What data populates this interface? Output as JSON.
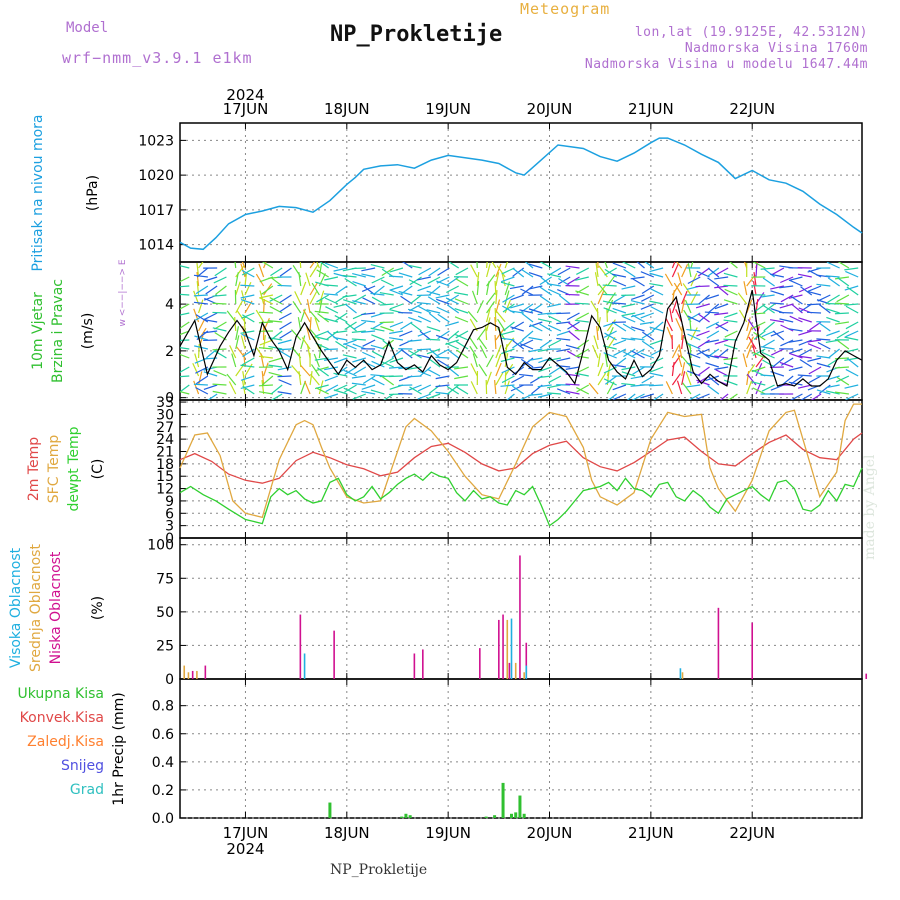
{
  "header": {
    "model_label": "Model",
    "model_name": "wrf−nmm_v3.9.1 e1km",
    "title": "NP_Prokletije",
    "meteogram_label": "Meteogram",
    "info_lonlat": "lon,lat (19.9125E, 42.5312N)",
    "info_altitude": "Nadmorska Visina 1760m",
    "info_model_altitude": "Nadmorska Visina u modelu 1647.44m"
  },
  "footer": {
    "station": "NP_Prokletije",
    "watermark": "made by Angel"
  },
  "colors": {
    "pressure": "#1ca0e0",
    "wind_speed": "#000000",
    "t2m": "#e04848",
    "tsfc": "#e0a840",
    "dewpoint": "#30d030",
    "cloud_high": "#20b0e0",
    "cloud_mid": "#e0a840",
    "cloud_low": "#d01090",
    "precip_total": "#30c030",
    "precip_conv": "#e04848",
    "precip_frozen": "#ff8030",
    "snow": "#5050e0",
    "grad": "#30c0c0",
    "gust": "#e04848"
  },
  "chart_data": [
    {
      "type": "line",
      "title": "",
      "ylabel_main": "Pritisak na nivou mora",
      "ylabel_unit": "(hPa)",
      "y_ticks": [
        1014,
        1017,
        1020,
        1023
      ],
      "ylim": [
        1012.5,
        1024.5
      ],
      "x_tick_labels": [
        "17JUN",
        "18JUN",
        "19JUN",
        "20JUN",
        "21JUN",
        "22JUN"
      ],
      "x_year": "2024",
      "x_hours_range": [
        -15.5,
        146
      ],
      "grid": true,
      "series": [
        {
          "x": [
            -15.5,
            -13,
            -10,
            -7,
            -4,
            0,
            4,
            8,
            12,
            16,
            20,
            24,
            26,
            28,
            32,
            36,
            40,
            44,
            48,
            52,
            56,
            60,
            64,
            66,
            70,
            74,
            80,
            84,
            88,
            92,
            96,
            98,
            100,
            104,
            108,
            112,
            116,
            120,
            124,
            128,
            132,
            136,
            140,
            144,
            146
          ],
          "y": [
            1014.2,
            1013.7,
            1013.6,
            1014.6,
            1015.8,
            1016.6,
            1016.9,
            1017.3,
            1017.2,
            1016.8,
            1017.8,
            1019.2,
            1019.8,
            1020.5,
            1020.8,
            1020.9,
            1020.6,
            1021.3,
            1021.7,
            1021.5,
            1021.3,
            1021.0,
            1020.2,
            1020.0,
            1021.3,
            1022.6,
            1022.3,
            1021.6,
            1021.2,
            1021.9,
            1022.8,
            1023.2,
            1023.2,
            1022.6,
            1021.8,
            1021.1,
            1019.7,
            1020.4,
            1019.6,
            1019.3,
            1018.6,
            1017.5,
            1016.6,
            1015.5,
            1015.0
          ]
        }
      ]
    },
    {
      "type": "line",
      "title": "",
      "ylabel_main": "10m Vjetar",
      "ylabel_sub": "Brzina i Pravac",
      "ylabel_unit": "(m/s)",
      "direction_key": "w <−−|−−> E",
      "y_ticks": [
        0,
        2,
        4
      ],
      "ylim": [
        -0.1,
        5.8
      ],
      "grid": true,
      "series": [
        {
          "name": "speed",
          "x": [
            -15.5,
            -12,
            -9,
            -6,
            -4,
            -2,
            0,
            2,
            4,
            6,
            8,
            10,
            12,
            14,
            16,
            18,
            20,
            22,
            24,
            26,
            28,
            30,
            32,
            34,
            36,
            38,
            40,
            42,
            44,
            46,
            48,
            50,
            52,
            54,
            56,
            58,
            60,
            62,
            64,
            66,
            68,
            70,
            72,
            74,
            76,
            78,
            80,
            82,
            84,
            86,
            88,
            90,
            92,
            94,
            96,
            98,
            100,
            102,
            104,
            106,
            108,
            110,
            112,
            114,
            116,
            118,
            120,
            122,
            124,
            126,
            128,
            130,
            132,
            134,
            136,
            138,
            140,
            142,
            144,
            146
          ],
          "y": [
            2.2,
            3.3,
            1.0,
            2.2,
            2.8,
            3.3,
            2.8,
            1.8,
            3.2,
            2.5,
            2.0,
            1.2,
            2.6,
            3.2,
            2.6,
            2.0,
            1.5,
            1.0,
            1.6,
            1.3,
            1.6,
            1.2,
            1.4,
            2.4,
            1.5,
            1.2,
            1.4,
            1.1,
            1.8,
            1.4,
            1.2,
            1.5,
            2.2,
            2.9,
            3.0,
            3.2,
            3.0,
            1.3,
            1.0,
            1.5,
            1.2,
            1.2,
            1.7,
            1.4,
            1.1,
            0.6,
            2.0,
            3.5,
            3.0,
            1.6,
            1.1,
            0.8,
            1.6,
            0.9,
            1.2,
            1.8,
            3.8,
            4.3,
            2.7,
            1.1,
            0.6,
            1.0,
            0.7,
            0.5,
            2.4,
            3.2,
            4.6,
            1.9,
            1.6,
            0.5,
            0.6,
            0.5,
            0.8,
            0.5,
            0.5,
            0.8,
            1.6,
            2.0,
            1.8,
            1.6
          ]
        }
      ]
    },
    {
      "type": "line",
      "title": "",
      "ylabels": [
        "2m Temp",
        "SFC Temp",
        "dewpt Temp"
      ],
      "ylabel_unit": "(C)",
      "y_ticks": [
        0,
        3,
        6,
        9,
        12,
        15,
        18,
        21,
        24,
        27,
        30,
        33
      ],
      "ylim": [
        0,
        33.5
      ],
      "grid": true,
      "series": [
        {
          "name": "2m Temp",
          "x": [
            -15.5,
            -12,
            -8,
            -4,
            0,
            4,
            8,
            12,
            16,
            20,
            24,
            28,
            32,
            36,
            40,
            44,
            48,
            52,
            56,
            60,
            64,
            68,
            72,
            76,
            80,
            84,
            88,
            92,
            96,
            100,
            104,
            108,
            112,
            116,
            120,
            124,
            128,
            132,
            136,
            140,
            144,
            146
          ],
          "y": [
            19.0,
            20.5,
            18.6,
            15.5,
            14.0,
            13.3,
            14.5,
            18.8,
            20.8,
            19.5,
            17.8,
            16.8,
            15.1,
            16.0,
            19.5,
            22.2,
            23.0,
            20.8,
            18.0,
            16.3,
            17.0,
            20.5,
            22.5,
            23.5,
            19.5,
            17.3,
            16.3,
            18.3,
            21.0,
            23.8,
            24.5,
            21.0,
            18.0,
            17.5,
            20.5,
            23.2,
            25.0,
            21.5,
            19.5,
            19.0,
            24.0,
            25.5
          ]
        },
        {
          "name": "SFC Temp",
          "x": [
            -15.5,
            -12,
            -9,
            -6,
            -3,
            0,
            2,
            4,
            8,
            12,
            14,
            16,
            18,
            20,
            24,
            28,
            32,
            36,
            38,
            40,
            44,
            48,
            52,
            56,
            60,
            64,
            68,
            72,
            76,
            80,
            82,
            84,
            88,
            92,
            96,
            100,
            104,
            108,
            110,
            112,
            116,
            120,
            124,
            128,
            130,
            132,
            136,
            140,
            142,
            144,
            146
          ],
          "y": [
            17.0,
            25.0,
            25.5,
            20.0,
            9.0,
            6.0,
            5.5,
            5.0,
            19.0,
            27.5,
            28.5,
            27.5,
            22.0,
            17.0,
            10.0,
            8.5,
            9.0,
            21.0,
            27.0,
            29.0,
            26.0,
            21.0,
            15.0,
            10.5,
            9.5,
            18.0,
            27.0,
            30.5,
            29.5,
            22.0,
            14.0,
            10.0,
            8.0,
            11.0,
            24.0,
            30.5,
            29.5,
            30.0,
            17.0,
            12.0,
            6.5,
            14.0,
            26.0,
            30.5,
            31.0,
            24.0,
            10.0,
            16.0,
            28.5,
            32.5,
            32.5
          ]
        },
        {
          "name": "dewpt Temp",
          "x": [
            -15.5,
            -13,
            -10,
            -7,
            -4,
            0,
            2,
            4,
            6,
            8,
            10,
            12,
            14,
            16,
            18,
            20,
            22,
            24,
            26,
            28,
            30,
            32,
            34,
            36,
            38,
            40,
            42,
            44,
            46,
            48,
            50,
            52,
            54,
            56,
            58,
            60,
            62,
            64,
            66,
            68,
            70,
            72,
            74,
            76,
            78,
            80,
            82,
            84,
            86,
            88,
            90,
            92,
            94,
            96,
            98,
            100,
            102,
            104,
            106,
            108,
            110,
            112,
            114,
            116,
            118,
            120,
            122,
            124,
            126,
            128,
            130,
            132,
            134,
            136,
            138,
            140,
            142,
            144,
            146
          ],
          "y": [
            11.0,
            12.5,
            10.5,
            9.0,
            7.0,
            4.5,
            4.0,
            3.5,
            10.0,
            12.0,
            10.5,
            11.5,
            9.5,
            8.5,
            9.0,
            13.5,
            14.5,
            10.5,
            9.0,
            10.0,
            12.5,
            9.5,
            11.0,
            13.0,
            14.5,
            15.5,
            14.0,
            16.0,
            15.0,
            14.5,
            11.0,
            9.0,
            11.5,
            9.5,
            10.0,
            8.5,
            8.0,
            11.5,
            10.5,
            12.5,
            8.0,
            3.0,
            4.5,
            6.5,
            9.0,
            11.5,
            12.0,
            12.5,
            13.5,
            11.5,
            14.5,
            12.0,
            11.5,
            10.0,
            13.0,
            13.5,
            10.0,
            9.0,
            11.5,
            10.0,
            7.5,
            6.0,
            9.5,
            10.5,
            11.5,
            12.5,
            10.5,
            9.0,
            13.5,
            14.0,
            12.0,
            7.0,
            6.5,
            8.0,
            11.5,
            9.0,
            13.0,
            12.5,
            17.0
          ]
        }
      ]
    },
    {
      "type": "bar",
      "title": "",
      "ylabels": [
        "Visoka Oblacnost",
        "Srednja Oblacnost",
        "Niska Oblacnost"
      ],
      "ylabel_unit": "(%)",
      "y_ticks": [
        0,
        25,
        50,
        75,
        100
      ],
      "ylim": [
        0,
        105
      ],
      "grid": true,
      "series": [
        {
          "name": "Niska Oblacnost",
          "x": [
            -12.5,
            -9.5,
            13,
            21,
            40,
            42,
            55.5,
            60,
            61,
            62.5,
            65,
            66.5,
            112,
            120,
            147
          ],
          "values": [
            6,
            10,
            48,
            36,
            19,
            22,
            23,
            44,
            48,
            12,
            92,
            27,
            53,
            42,
            4
          ]
        },
        {
          "name": "Srednja Oblacnost",
          "x": [
            -14.5,
            -13.5,
            -11.5,
            62,
            64,
            66,
            103.5
          ],
          "values": [
            10,
            5,
            6,
            44,
            12,
            5,
            5
          ]
        },
        {
          "name": "Visoka Oblacnost",
          "x": [
            14,
            63,
            66.5,
            103
          ],
          "values": [
            19,
            45,
            10,
            8
          ]
        }
      ]
    },
    {
      "type": "bar",
      "title": "",
      "ylabels": [
        "Ukupna Kisa",
        "Konvek.Kisa",
        "Zaledj.Kisa",
        "Snijeg",
        "Grad"
      ],
      "ylabel_unit": "1hr Precip (mm)",
      "y_ticks": [
        0.0,
        0.2,
        0.4,
        0.6,
        0.8
      ],
      "ylim": [
        0,
        0.99
      ],
      "grid": true,
      "x_tick_labels_bottom": [
        "17JUN",
        "18JUN",
        "19JUN",
        "20JUN",
        "21JUN",
        "22JUN"
      ],
      "x_year": "2024",
      "series": [
        {
          "name": "Ukupna Kisa",
          "x": [
            20,
            37,
            38,
            39,
            57,
            59,
            61,
            63,
            64,
            65,
            66
          ],
          "values": [
            0.11,
            0.01,
            0.03,
            0.02,
            0.01,
            0.02,
            0.25,
            0.03,
            0.04,
            0.16,
            0.03
          ]
        }
      ]
    }
  ]
}
